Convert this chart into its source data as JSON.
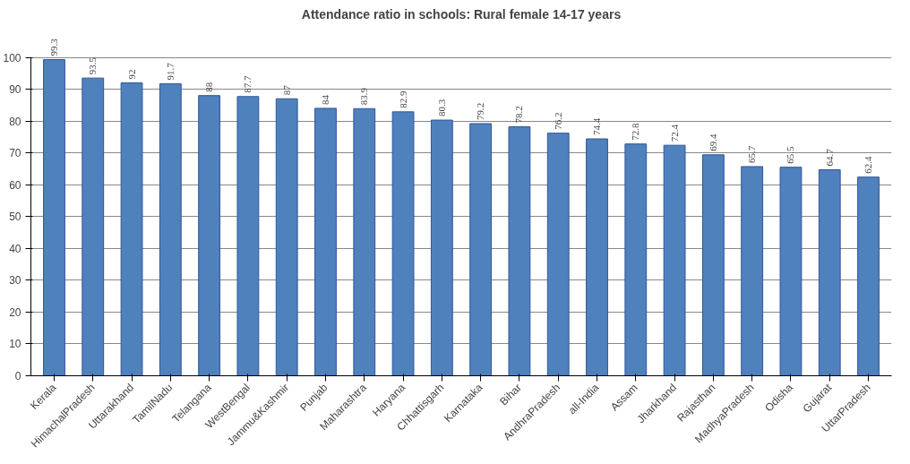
{
  "chart_data": {
    "type": "bar",
    "title": "Attendance ratio in schools: Rural female 14-17 years",
    "categories": [
      "Kerala",
      "HimachalPradesh",
      "Uttarakhand",
      "TamilNadu",
      "Telangana",
      "WestBengal",
      "Jammu&Kashmir",
      "Punjab",
      "Maharashtra",
      "Haryana",
      "Chhattisgarh",
      "Karnataka",
      "Bihar",
      "AndhraPradesh",
      "all-India",
      "Assam",
      "Jharkhand",
      "Rajasthan",
      "MadhyaPradesh",
      "Odisha",
      "Gujarat",
      "UttarPradesh"
    ],
    "values": [
      99.3,
      93.5,
      92,
      91.7,
      88,
      87.7,
      87,
      84,
      83.9,
      82.9,
      80.3,
      79.2,
      78.2,
      76.2,
      74.4,
      72.8,
      72.4,
      69.4,
      65.7,
      65.5,
      64.7,
      62.4
    ],
    "color": "#4f81bd",
    "ylim": [
      0,
      100
    ],
    "yticks": [
      0,
      10,
      20,
      30,
      40,
      50,
      60,
      70,
      80,
      90,
      100
    ],
    "grid": "y",
    "data_labels": true
  }
}
